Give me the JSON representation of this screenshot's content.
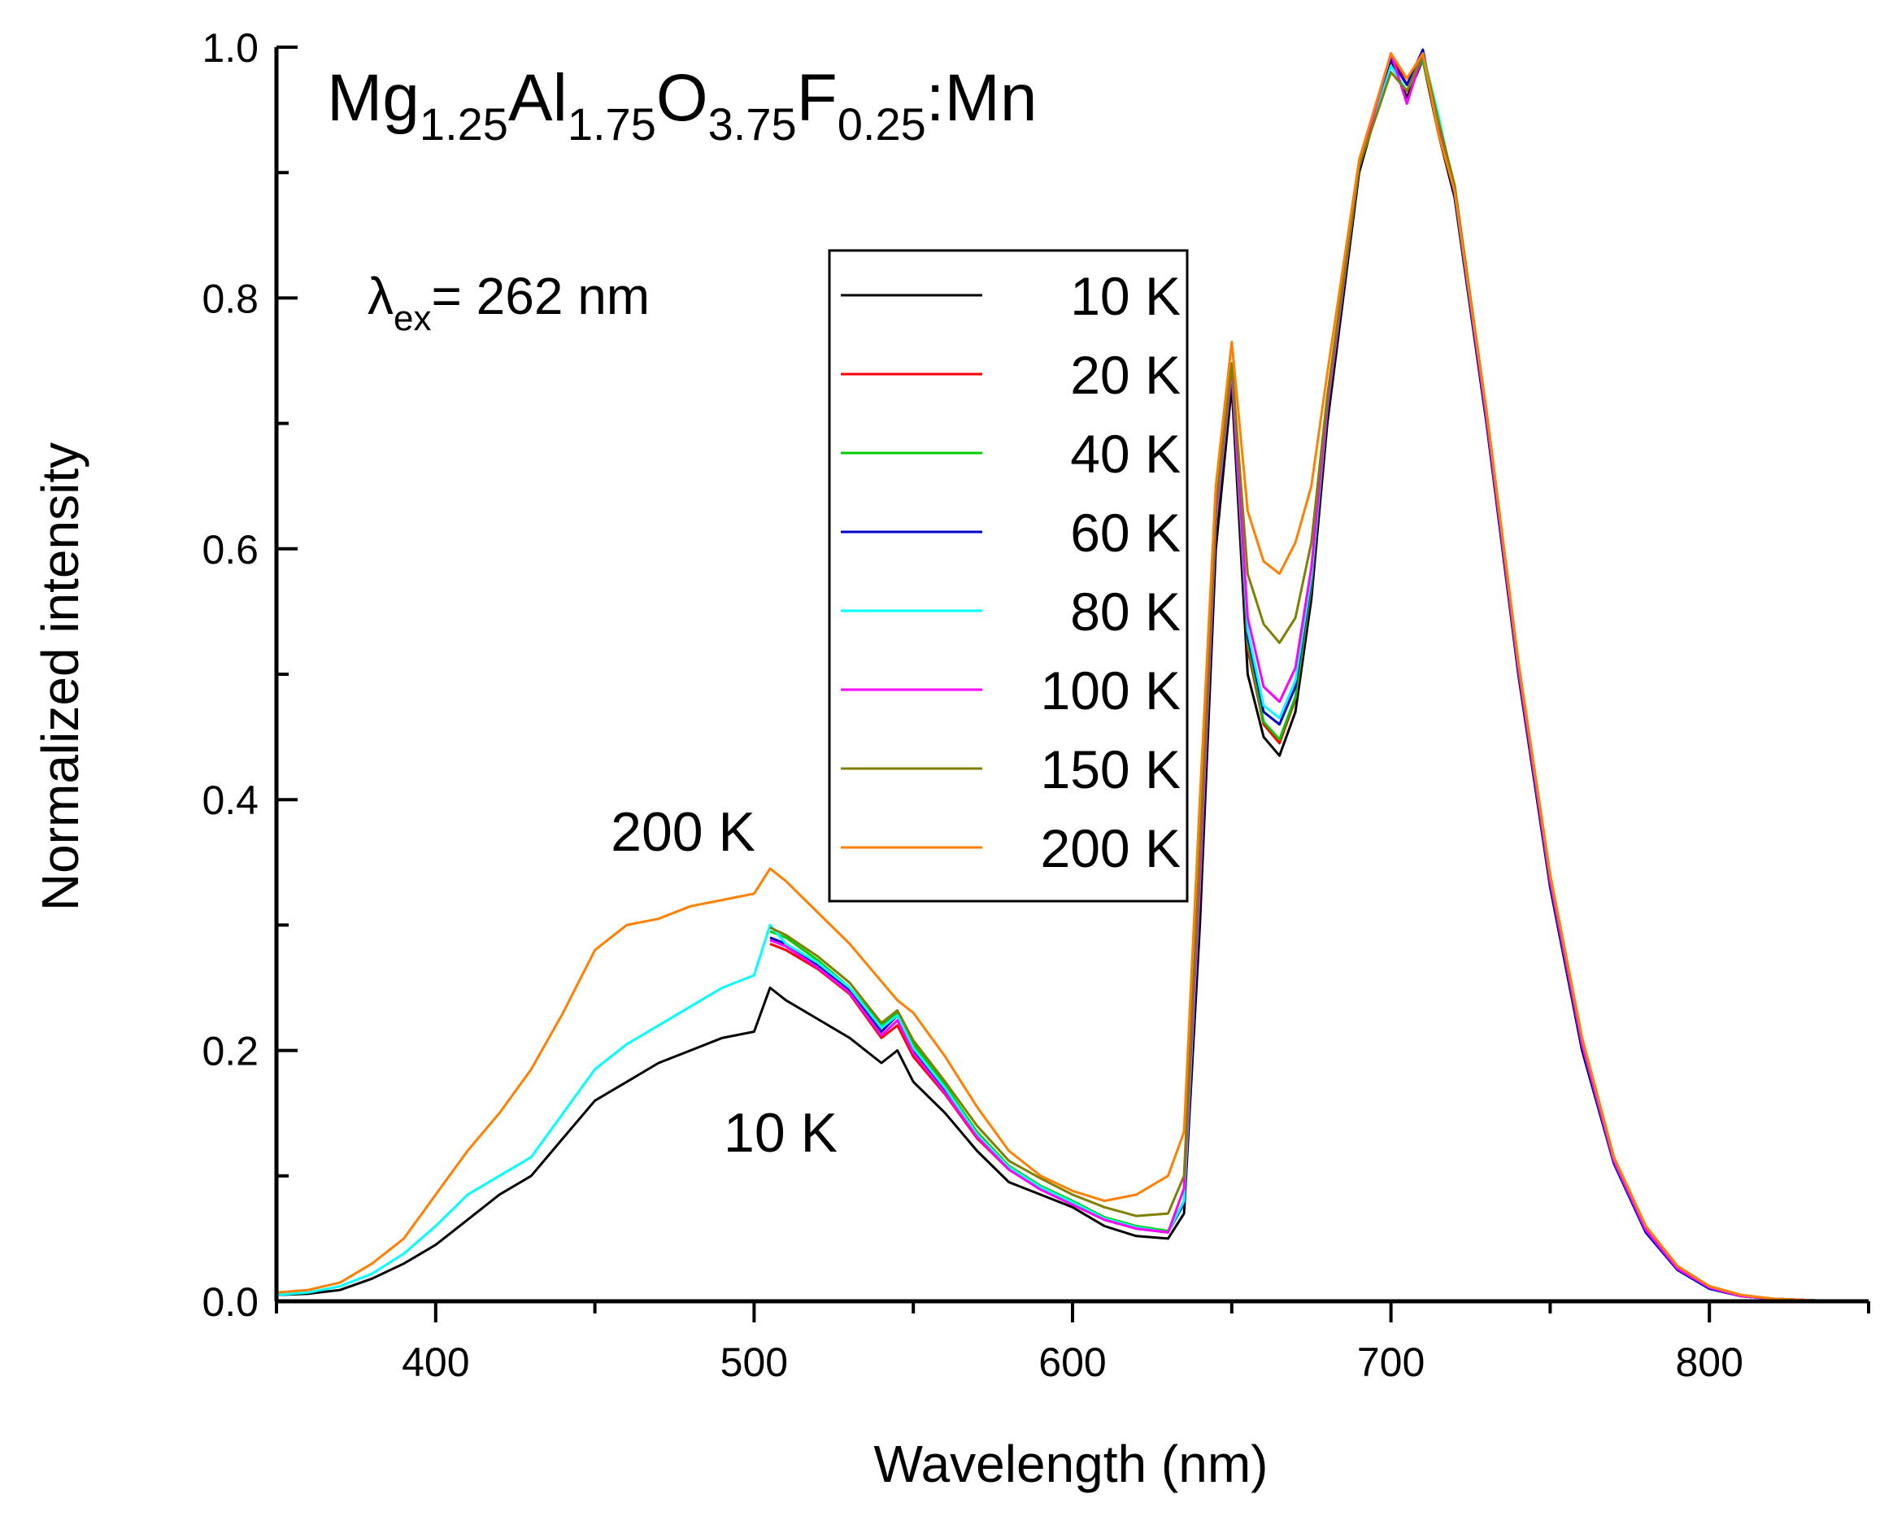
{
  "chart_data": {
    "type": "line",
    "title": "",
    "xlabel": "Wavelength (nm)",
    "ylabel": "Normalized intensity",
    "xlim": [
      350,
      850
    ],
    "ylim": [
      0.0,
      1.0
    ],
    "x_ticks": [
      400,
      500,
      600,
      700,
      800
    ],
    "x_tick_labels": [
      "400",
      "500",
      "600",
      "700",
      "800"
    ],
    "y_ticks": [
      0.0,
      0.2,
      0.4,
      0.6,
      0.8,
      1.0
    ],
    "y_tick_labels": [
      "0.0",
      "0.2",
      "0.4",
      "0.6",
      "0.8",
      "1.0"
    ],
    "grid": false,
    "legend_position": "upper-center",
    "formula": {
      "parts": [
        {
          "text": "Mg",
          "sub": false
        },
        {
          "text": "1.25",
          "sub": true
        },
        {
          "text": "Al",
          "sub": false
        },
        {
          "text": "1.75",
          "sub": true
        },
        {
          "text": "O",
          "sub": false
        },
        {
          "text": "3.75",
          "sub": true
        },
        {
          "text": "F",
          "sub": false
        },
        {
          "text": "0.25",
          "sub": true
        },
        {
          "text": ":Mn",
          "sub": false
        }
      ]
    },
    "excitation": {
      "symbol": "λ",
      "sub": "ex",
      "text": "= 262 nm"
    },
    "annotations": [
      {
        "text": "200 K",
        "anchor": "above 200 K green-band peak"
      },
      {
        "text": "10 K",
        "anchor": "below 10 K green-band peak"
      }
    ],
    "series": [
      {
        "name": "10 K",
        "color": "#000000",
        "x": [
          350,
          360,
          370,
          380,
          390,
          400,
          410,
          420,
          430,
          440,
          450,
          460,
          470,
          480,
          490,
          500,
          505,
          510,
          520,
          530,
          540,
          545,
          550,
          560,
          570,
          580,
          590,
          600,
          610,
          620,
          630,
          635,
          640,
          645,
          650,
          655,
          660,
          665,
          670,
          675,
          680,
          690,
          700,
          705,
          710,
          715,
          720,
          730,
          740,
          750,
          760,
          770,
          780,
          790,
          800,
          810,
          820,
          830,
          840,
          850
        ],
        "y": [
          0.005,
          0.006,
          0.009,
          0.018,
          0.03,
          0.045,
          0.065,
          0.085,
          0.1,
          0.13,
          0.16,
          0.175,
          0.19,
          0.2,
          0.21,
          0.215,
          0.25,
          0.24,
          0.225,
          0.21,
          0.19,
          0.2,
          0.175,
          0.15,
          0.12,
          0.095,
          0.085,
          0.075,
          0.06,
          0.052,
          0.05,
          0.07,
          0.3,
          0.6,
          0.73,
          0.5,
          0.45,
          0.435,
          0.47,
          0.56,
          0.7,
          0.9,
          0.99,
          0.96,
          0.99,
          0.93,
          0.88,
          0.7,
          0.5,
          0.33,
          0.2,
          0.11,
          0.055,
          0.025,
          0.01,
          0.004,
          0.002,
          0.001,
          0.0,
          0.0
        ]
      },
      {
        "name": "20 K",
        "color": "#ff0000",
        "x": [
          505,
          510,
          520,
          530,
          540,
          545,
          550,
          560,
          570,
          580,
          590,
          600,
          610,
          620,
          630,
          635,
          640,
          645,
          650,
          655,
          660,
          665,
          670,
          675,
          680,
          690,
          700,
          705,
          710,
          715,
          720,
          730,
          740,
          750,
          760,
          770,
          780,
          790,
          800,
          810,
          820,
          830,
          840,
          850
        ],
        "y": [
          0.285,
          0.28,
          0.265,
          0.245,
          0.21,
          0.22,
          0.195,
          0.165,
          0.13,
          0.105,
          0.09,
          0.078,
          0.065,
          0.058,
          0.055,
          0.078,
          0.33,
          0.62,
          0.74,
          0.52,
          0.46,
          0.445,
          0.48,
          0.57,
          0.71,
          0.905,
          0.995,
          0.97,
          0.995,
          0.935,
          0.885,
          0.705,
          0.505,
          0.335,
          0.205,
          0.112,
          0.057,
          0.026,
          0.011,
          0.004,
          0.002,
          0.001,
          0.0,
          0.0
        ]
      },
      {
        "name": "40 K",
        "color": "#00cc00",
        "x": [
          505,
          510,
          520,
          530,
          540,
          545,
          550,
          560,
          570,
          580,
          590,
          600,
          610,
          620,
          630,
          635,
          640,
          645,
          650,
          655,
          660,
          665,
          670,
          675,
          680,
          690,
          700,
          705,
          710,
          715,
          720,
          730,
          740,
          750,
          760,
          770,
          780,
          790,
          800,
          810,
          820,
          830,
          840,
          850
        ],
        "y": [
          0.295,
          0.29,
          0.272,
          0.25,
          0.22,
          0.23,
          0.205,
          0.172,
          0.135,
          0.108,
          0.092,
          0.08,
          0.067,
          0.06,
          0.056,
          0.08,
          0.335,
          0.625,
          0.745,
          0.525,
          0.462,
          0.448,
          0.482,
          0.572,
          0.712,
          0.905,
          0.985,
          0.965,
          0.99,
          0.935,
          0.885,
          0.705,
          0.505,
          0.335,
          0.205,
          0.112,
          0.057,
          0.026,
          0.011,
          0.004,
          0.002,
          0.001,
          0.0,
          0.0
        ]
      },
      {
        "name": "60 K",
        "color": "#0000cc",
        "x": [
          505,
          510,
          520,
          530,
          540,
          545,
          550,
          560,
          570,
          580,
          590,
          600,
          610,
          620,
          630,
          635,
          640,
          645,
          650,
          655,
          660,
          665,
          670,
          675,
          680,
          690,
          700,
          705,
          710,
          715,
          720,
          730,
          740,
          750,
          760,
          770,
          780,
          790,
          800,
          810,
          820,
          830,
          840,
          850
        ],
        "y": [
          0.29,
          0.285,
          0.268,
          0.248,
          0.215,
          0.228,
          0.2,
          0.168,
          0.132,
          0.106,
          0.09,
          0.078,
          0.066,
          0.058,
          0.055,
          0.078,
          0.332,
          0.622,
          0.742,
          0.53,
          0.47,
          0.46,
          0.49,
          0.575,
          0.712,
          0.905,
          0.99,
          0.97,
          0.998,
          0.935,
          0.882,
          0.702,
          0.502,
          0.332,
          0.202,
          0.11,
          0.055,
          0.025,
          0.01,
          0.004,
          0.002,
          0.001,
          0.0,
          0.0
        ]
      },
      {
        "name": "80 K",
        "color": "#00ffff",
        "x": [
          350,
          360,
          370,
          380,
          390,
          400,
          410,
          420,
          430,
          440,
          450,
          460,
          470,
          480,
          490,
          500,
          505,
          510,
          520,
          530,
          540,
          545,
          550,
          560,
          570,
          580,
          590,
          600,
          610,
          620,
          630,
          635,
          640,
          645,
          650,
          655,
          660,
          665,
          670,
          675,
          680,
          690,
          700,
          705,
          710,
          715,
          720,
          730,
          740,
          750,
          760,
          770,
          780,
          790,
          800,
          810,
          820,
          830,
          840,
          850
        ],
        "y": [
          0.005,
          0.007,
          0.012,
          0.022,
          0.038,
          0.06,
          0.085,
          0.1,
          0.115,
          0.15,
          0.185,
          0.205,
          0.22,
          0.235,
          0.25,
          0.26,
          0.3,
          0.285,
          0.27,
          0.25,
          0.218,
          0.228,
          0.202,
          0.17,
          0.133,
          0.107,
          0.091,
          0.079,
          0.066,
          0.059,
          0.055,
          0.08,
          0.334,
          0.624,
          0.744,
          0.535,
          0.475,
          0.465,
          0.495,
          0.578,
          0.714,
          0.905,
          0.985,
          0.965,
          0.995,
          0.945,
          0.885,
          0.705,
          0.505,
          0.335,
          0.205,
          0.112,
          0.057,
          0.026,
          0.011,
          0.004,
          0.002,
          0.001,
          0.0,
          0.0
        ]
      },
      {
        "name": "100 K",
        "color": "#ff00ff",
        "x": [
          505,
          510,
          520,
          530,
          540,
          545,
          550,
          560,
          570,
          580,
          590,
          600,
          610,
          620,
          630,
          635,
          640,
          645,
          650,
          655,
          660,
          665,
          670,
          675,
          680,
          690,
          700,
          705,
          710,
          715,
          720,
          730,
          740,
          750,
          760,
          770,
          780,
          790,
          800,
          810,
          820,
          830,
          840,
          850
        ],
        "y": [
          0.288,
          0.283,
          0.266,
          0.246,
          0.212,
          0.224,
          0.198,
          0.166,
          0.131,
          0.105,
          0.089,
          0.077,
          0.065,
          0.058,
          0.055,
          0.09,
          0.34,
          0.628,
          0.745,
          0.545,
          0.49,
          0.478,
          0.505,
          0.585,
          0.716,
          0.905,
          0.995,
          0.955,
          0.995,
          0.935,
          0.885,
          0.705,
          0.505,
          0.335,
          0.205,
          0.112,
          0.057,
          0.026,
          0.011,
          0.004,
          0.002,
          0.001,
          0.0,
          0.0
        ]
      },
      {
        "name": "150 K",
        "color": "#808000",
        "x": [
          505,
          510,
          520,
          530,
          540,
          545,
          550,
          560,
          570,
          580,
          590,
          600,
          610,
          620,
          630,
          635,
          640,
          645,
          650,
          655,
          660,
          665,
          670,
          675,
          680,
          690,
          700,
          705,
          710,
          715,
          720,
          730,
          740,
          750,
          760,
          770,
          780,
          790,
          800,
          810,
          820,
          830,
          840,
          850
        ],
        "y": [
          0.298,
          0.292,
          0.275,
          0.254,
          0.222,
          0.232,
          0.208,
          0.175,
          0.14,
          0.112,
          0.098,
          0.085,
          0.075,
          0.068,
          0.07,
          0.1,
          0.36,
          0.635,
          0.748,
          0.58,
          0.54,
          0.525,
          0.545,
          0.605,
          0.722,
          0.905,
          0.98,
          0.965,
          0.995,
          0.94,
          0.89,
          0.71,
          0.51,
          0.34,
          0.21,
          0.115,
          0.06,
          0.028,
          0.012,
          0.005,
          0.002,
          0.001,
          0.0,
          0.0
        ]
      },
      {
        "name": "200 K",
        "color": "#ff8000",
        "x": [
          350,
          360,
          370,
          380,
          390,
          400,
          410,
          420,
          430,
          440,
          450,
          460,
          470,
          480,
          490,
          500,
          505,
          510,
          520,
          530,
          540,
          545,
          550,
          560,
          570,
          580,
          590,
          600,
          610,
          620,
          630,
          635,
          640,
          645,
          650,
          655,
          660,
          665,
          670,
          675,
          680,
          690,
          700,
          705,
          710,
          715,
          720,
          730,
          740,
          750,
          760,
          770,
          780,
          790,
          800,
          810,
          820,
          830,
          840,
          850
        ],
        "y": [
          0.007,
          0.009,
          0.015,
          0.03,
          0.05,
          0.085,
          0.12,
          0.15,
          0.185,
          0.23,
          0.28,
          0.3,
          0.305,
          0.315,
          0.32,
          0.325,
          0.345,
          0.335,
          0.31,
          0.285,
          0.255,
          0.24,
          0.23,
          0.195,
          0.155,
          0.12,
          0.1,
          0.088,
          0.08,
          0.085,
          0.1,
          0.135,
          0.4,
          0.65,
          0.765,
          0.63,
          0.59,
          0.58,
          0.605,
          0.65,
          0.74,
          0.91,
          0.995,
          0.975,
          0.995,
          0.93,
          0.885,
          0.71,
          0.51,
          0.34,
          0.21,
          0.115,
          0.06,
          0.028,
          0.012,
          0.005,
          0.002,
          0.001,
          0.0,
          0.0
        ]
      }
    ]
  }
}
